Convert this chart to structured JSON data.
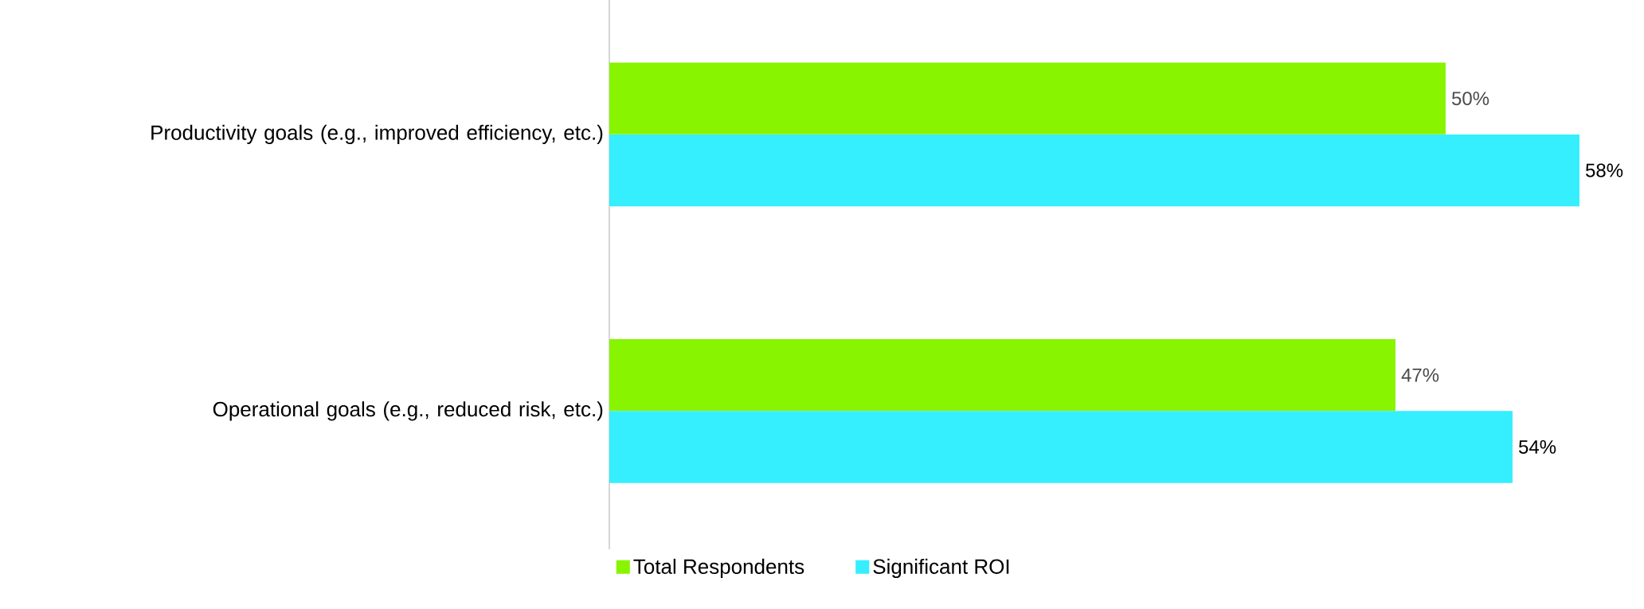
{
  "chart_data": {
    "type": "bar",
    "orientation": "horizontal",
    "categories": [
      "Productivity goals (e.g., improved efficiency, etc.)",
      "Operational goals (e.g., reduced risk, etc.)"
    ],
    "series": [
      {
        "name": "Total Respondents",
        "color": "#88f400",
        "values": [
          50,
          47
        ],
        "value_labels": [
          "50%",
          "47%"
        ]
      },
      {
        "name": "Significant ROI",
        "color": "#35eefe",
        "values": [
          58,
          54
        ],
        "value_labels": [
          "58%",
          "54%"
        ]
      }
    ],
    "legend": "bottom"
  }
}
